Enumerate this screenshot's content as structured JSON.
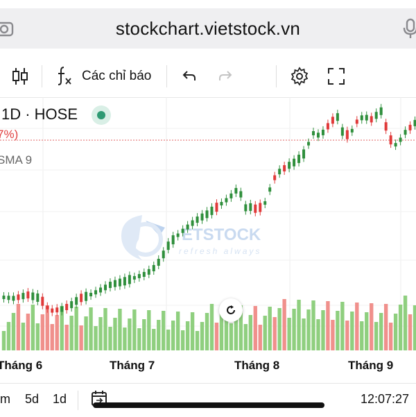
{
  "browser": {
    "url": "stockchart.vietstock.vn"
  },
  "toolbar": {
    "indicators_label": "Các chỉ báo"
  },
  "legend": {
    "symbol_interval": "1D · HOSE",
    "change_pct_fragment": "7%)",
    "sma_label": "SMA 9"
  },
  "xaxis": {
    "labels": [
      "Tháng 6",
      "Tháng 7",
      "Tháng 8",
      "Tháng 9"
    ]
  },
  "watermark": {
    "brand": "ETSTOCK",
    "slogan": "refresh always"
  },
  "bottom": {
    "ranges": [
      "m",
      "5d",
      "1d"
    ],
    "time": "12:07:27"
  },
  "colors": {
    "up": "#2f8f3c",
    "down": "#e03a3a",
    "vol_up": "#8fcf7f",
    "vol_down": "#f0908c",
    "live": "#2e9a73"
  },
  "chart_data": {
    "type": "candlestick",
    "xlabels": [
      "Tháng 6",
      "Tháng 7",
      "Tháng 8",
      "Tháng 9"
    ],
    "candles": [
      [
        1,
        0,
        0,
        0,
        0
      ],
      [
        1,
        0,
        0,
        0,
        0
      ],
      [
        1,
        0,
        0,
        0,
        0
      ],
      [
        0,
        0,
        0,
        0,
        0
      ],
      [
        1,
        0,
        0,
        0,
        0
      ],
      [
        0,
        0,
        0,
        0,
        0
      ],
      [
        1,
        0,
        0,
        0,
        0
      ],
      [
        1,
        0,
        0,
        0,
        0
      ],
      [
        0,
        0,
        0,
        0,
        0
      ],
      [
        0,
        0,
        0,
        0,
        0
      ],
      [
        0,
        0,
        0,
        0,
        0
      ],
      [
        0,
        0,
        0,
        0,
        0
      ],
      [
        1,
        0,
        0,
        0,
        0
      ],
      [
        0,
        0,
        0,
        0,
        0
      ],
      [
        1,
        0,
        0,
        0,
        0
      ],
      [
        1,
        0,
        0,
        0,
        0
      ],
      [
        0,
        0,
        0,
        0,
        0
      ],
      [
        1,
        0,
        0,
        0,
        0
      ],
      [
        1,
        0,
        0,
        0,
        0
      ],
      [
        1,
        0,
        0,
        0,
        0
      ],
      [
        1,
        0,
        0,
        0,
        0
      ],
      [
        1,
        0,
        0,
        0,
        0
      ],
      [
        1,
        0,
        0,
        0,
        0
      ],
      [
        1,
        0,
        0,
        0,
        0
      ],
      [
        1,
        0,
        0,
        0,
        0
      ],
      [
        1,
        0,
        0,
        0,
        0
      ],
      [
        1,
        0,
        0,
        0,
        0
      ],
      [
        1,
        0,
        0,
        0,
        0
      ],
      [
        1,
        0,
        0,
        0,
        0
      ],
      [
        1,
        0,
        0,
        0,
        0
      ],
      [
        1,
        0,
        0,
        0,
        0
      ],
      [
        1,
        0,
        0,
        0,
        0
      ],
      [
        1,
        0,
        0,
        0,
        0
      ],
      [
        1,
        0,
        0,
        0,
        0
      ],
      [
        1,
        0,
        0,
        0,
        0
      ],
      [
        1,
        0,
        0,
        0,
        0
      ],
      [
        1,
        0,
        0,
        0,
        0
      ],
      [
        1,
        0,
        0,
        0,
        0
      ],
      [
        1,
        0,
        0,
        0,
        0
      ],
      [
        1,
        0,
        0,
        0,
        0
      ],
      [
        1,
        0,
        0,
        0,
        0
      ],
      [
        1,
        0,
        0,
        0,
        0
      ],
      [
        1,
        0,
        0,
        0,
        0
      ],
      [
        1,
        0,
        0,
        0,
        0
      ],
      [
        0,
        0,
        0,
        0,
        0
      ],
      [
        1,
        0,
        0,
        0,
        0
      ],
      [
        1,
        0,
        0,
        0,
        0
      ],
      [
        1,
        0,
        0,
        0,
        0
      ],
      [
        1,
        0,
        0,
        0,
        0
      ],
      [
        1,
        0,
        0,
        0,
        0
      ],
      [
        1,
        0,
        0,
        0,
        0
      ],
      [
        1,
        0,
        0,
        0,
        0
      ],
      [
        0,
        0,
        0,
        0,
        0
      ],
      [
        0,
        0,
        0,
        0,
        0
      ],
      [
        1,
        0,
        0,
        0,
        0
      ],
      [
        1,
        0,
        0,
        0,
        0
      ],
      [
        0,
        0,
        0,
        0,
        0
      ],
      [
        1,
        0,
        0,
        0,
        0
      ],
      [
        0,
        0,
        0,
        0,
        0
      ],
      [
        1,
        0,
        0,
        0,
        0
      ],
      [
        1,
        0,
        0,
        0,
        0
      ],
      [
        1,
        0,
        0,
        0,
        0
      ],
      [
        1,
        0,
        0,
        0,
        0
      ],
      [
        1,
        0,
        0,
        0,
        0
      ],
      [
        1,
        0,
        0,
        0,
        0
      ],
      [
        1,
        0,
        0,
        0,
        0
      ],
      [
        1,
        0,
        0,
        0,
        0
      ],
      [
        0,
        0,
        0,
        0,
        0
      ],
      [
        0,
        0,
        0,
        0,
        0
      ],
      [
        1,
        0,
        0,
        0,
        0
      ],
      [
        1,
        0,
        0,
        0,
        0
      ],
      [
        0,
        0,
        0,
        0,
        0
      ],
      [
        1,
        0,
        0,
        0,
        0
      ],
      [
        0,
        0,
        0,
        0,
        0
      ],
      [
        1,
        0,
        0,
        0,
        0
      ],
      [
        1,
        0,
        0,
        0,
        0
      ],
      [
        0,
        0,
        0,
        0,
        0
      ],
      [
        1,
        0,
        0,
        0,
        0
      ],
      [
        1,
        0,
        0,
        0,
        0
      ],
      [
        0,
        0,
        0,
        0,
        0
      ],
      [
        0,
        0,
        0,
        0,
        0
      ],
      [
        1,
        0,
        0,
        0,
        0
      ],
      [
        1,
        0,
        0,
        0,
        0
      ],
      [
        1,
        0,
        0,
        0,
        0
      ],
      [
        0,
        0,
        0,
        0,
        0
      ],
      [
        1,
        0,
        0,
        0,
        0
      ]
    ],
    "note": "price and volume values are not printed on screen; candles are encoded by direction only"
  }
}
